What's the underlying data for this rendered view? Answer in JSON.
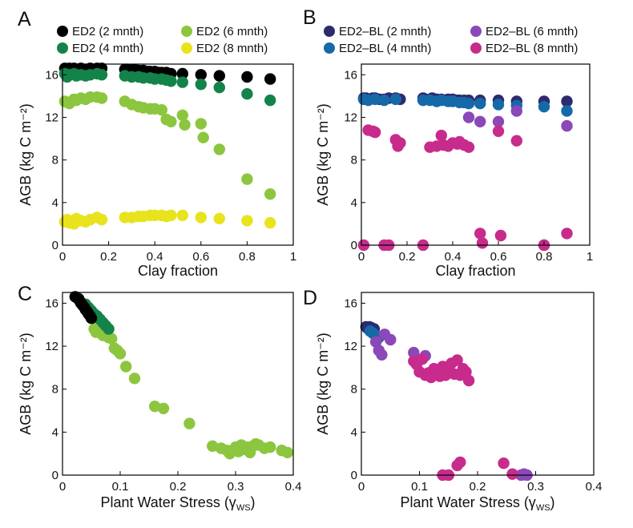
{
  "chart_data": [
    {
      "type": "scatter",
      "panel": "A",
      "xlabel": "Clay fraction",
      "ylabel": "AGB (kg C m⁻²)",
      "xlim": [
        0,
        1
      ],
      "ylim": [
        0,
        17
      ],
      "xticks": [
        "0",
        "0.2",
        "0.4",
        "0.6",
        "0.8",
        "1"
      ],
      "xtick_values": [
        0,
        0.2,
        0.4,
        0.6,
        0.8,
        1
      ],
      "yticks": [
        "0",
        "4",
        "8",
        "12",
        "16"
      ],
      "ytick_values": [
        0,
        4,
        8,
        12,
        16
      ],
      "grid": false,
      "legend": "top",
      "series": [
        {
          "name": "ED2 (2 mnth)",
          "color": "#000000",
          "x": [
            0.01,
            0.02,
            0.03,
            0.05,
            0.06,
            0.08,
            0.1,
            0.12,
            0.15,
            0.17,
            0.27,
            0.28,
            0.3,
            0.31,
            0.33,
            0.35,
            0.37,
            0.38,
            0.4,
            0.42,
            0.43,
            0.45,
            0.47,
            0.52,
            0.6,
            0.68,
            0.8,
            0.9
          ],
          "y": [
            16.6,
            16.5,
            16.6,
            16.6,
            16.5,
            16.6,
            16.5,
            16.6,
            16.6,
            16.6,
            16.5,
            16.5,
            16.4,
            16.5,
            16.4,
            16.4,
            16.3,
            16.3,
            16.3,
            16.2,
            16.2,
            16.2,
            16.1,
            16.1,
            16.0,
            15.9,
            15.8,
            15.6
          ]
        },
        {
          "name": "ED2 (4 mnth)",
          "color": "#13834a",
          "x": [
            0.01,
            0.02,
            0.03,
            0.05,
            0.06,
            0.08,
            0.1,
            0.12,
            0.15,
            0.17,
            0.27,
            0.3,
            0.33,
            0.35,
            0.38,
            0.4,
            0.43,
            0.45,
            0.47,
            0.52,
            0.6,
            0.68,
            0.8,
            0.9
          ],
          "y": [
            16.1,
            15.8,
            16.0,
            16.1,
            15.9,
            16.0,
            15.9,
            16.0,
            16.1,
            16.0,
            15.9,
            15.8,
            15.8,
            15.7,
            15.7,
            15.6,
            15.6,
            15.5,
            15.4,
            15.3,
            15.1,
            14.8,
            14.2,
            13.6
          ]
        },
        {
          "name": "ED2 (6 mnth)",
          "color": "#8cc63e",
          "x": [
            0.01,
            0.02,
            0.03,
            0.05,
            0.06,
            0.08,
            0.1,
            0.12,
            0.15,
            0.17,
            0.27,
            0.3,
            0.33,
            0.35,
            0.38,
            0.4,
            0.43,
            0.45,
            0.47,
            0.52,
            0.53,
            0.6,
            0.61,
            0.68,
            0.8,
            0.9
          ],
          "y": [
            13.5,
            13.4,
            13.3,
            13.7,
            13.6,
            13.8,
            13.7,
            13.9,
            13.9,
            13.8,
            13.5,
            13.2,
            13.0,
            12.9,
            12.8,
            12.8,
            12.7,
            11.8,
            11.6,
            12.2,
            11.3,
            11.4,
            10.1,
            9.0,
            6.2,
            4.8
          ]
        },
        {
          "name": "ED2 (8 mnth)",
          "color": "#e8e31c",
          "x": [
            0.01,
            0.02,
            0.03,
            0.05,
            0.06,
            0.08,
            0.1,
            0.12,
            0.15,
            0.17,
            0.27,
            0.3,
            0.33,
            0.35,
            0.38,
            0.4,
            0.43,
            0.45,
            0.47,
            0.52,
            0.6,
            0.68,
            0.8,
            0.9
          ],
          "y": [
            2.2,
            2.4,
            2.1,
            2.0,
            2.5,
            2.3,
            2.2,
            2.4,
            2.6,
            2.4,
            2.6,
            2.6,
            2.7,
            2.7,
            2.8,
            2.8,
            2.8,
            2.7,
            2.8,
            2.8,
            2.6,
            2.5,
            2.3,
            2.1
          ]
        }
      ]
    },
    {
      "type": "scatter",
      "panel": "B",
      "xlabel": "Clay fraction",
      "ylabel": "AGB (kg C m⁻²)",
      "xlim": [
        0,
        1
      ],
      "ylim": [
        0,
        17
      ],
      "xticks": [
        "0",
        "0.2",
        "0.4",
        "0.6",
        "0.8",
        "1"
      ],
      "xtick_values": [
        0,
        0.2,
        0.4,
        0.6,
        0.8,
        1
      ],
      "yticks": [
        "0",
        "4",
        "8",
        "12",
        "16"
      ],
      "ytick_values": [
        0,
        4,
        8,
        12,
        16
      ],
      "grid": false,
      "legend": "top",
      "series": [
        {
          "name": "ED2–BL (2 mnth)",
          "color": "#2d2b6e",
          "x": [
            0.01,
            0.02,
            0.03,
            0.05,
            0.06,
            0.08,
            0.1,
            0.12,
            0.15,
            0.17,
            0.27,
            0.28,
            0.3,
            0.31,
            0.33,
            0.35,
            0.37,
            0.38,
            0.4,
            0.42,
            0.43,
            0.45,
            0.47,
            0.52,
            0.6,
            0.68,
            0.8,
            0.9
          ],
          "y": [
            13.8,
            13.8,
            13.7,
            13.8,
            13.8,
            13.7,
            13.7,
            13.8,
            13.8,
            13.7,
            13.8,
            13.7,
            13.7,
            13.8,
            13.7,
            13.7,
            13.6,
            13.7,
            13.7,
            13.6,
            13.6,
            13.6,
            13.6,
            13.6,
            13.6,
            13.5,
            13.5,
            13.5
          ]
        },
        {
          "name": "ED2–BL (4 mnth)",
          "color": "#1669a8",
          "x": [
            0.01,
            0.03,
            0.06,
            0.1,
            0.15,
            0.27,
            0.3,
            0.33,
            0.35,
            0.38,
            0.4,
            0.43,
            0.45,
            0.47,
            0.52,
            0.6,
            0.68,
            0.8,
            0.9
          ],
          "y": [
            13.7,
            13.6,
            13.7,
            13.6,
            13.7,
            13.6,
            13.6,
            13.5,
            13.6,
            13.5,
            13.5,
            13.4,
            13.4,
            13.3,
            13.3,
            13.2,
            13.1,
            13.0,
            12.6
          ]
        },
        {
          "name": "ED2–BL (6 mnth)",
          "color": "#8a48b8",
          "x": [
            0.47,
            0.52,
            0.6,
            0.68,
            0.8,
            0.9
          ],
          "y": [
            12.0,
            11.6,
            11.6,
            12.6,
            0.0,
            11.2
          ]
        },
        {
          "name": "ED2–BL (8 mnth)",
          "color": "#c72b8c",
          "x": [
            0.01,
            0.03,
            0.05,
            0.06,
            0.1,
            0.12,
            0.15,
            0.16,
            0.17,
            0.27,
            0.3,
            0.33,
            0.35,
            0.36,
            0.38,
            0.4,
            0.42,
            0.43,
            0.45,
            0.47,
            0.52,
            0.53,
            0.6,
            0.61,
            0.68,
            0.8,
            0.9
          ],
          "y": [
            0.0,
            10.8,
            10.7,
            10.6,
            0.0,
            0.0,
            9.9,
            9.3,
            9.6,
            0.0,
            9.2,
            9.3,
            10.3,
            9.4,
            9.3,
            9.6,
            9.5,
            9.7,
            9.4,
            9.2,
            1.1,
            0.2,
            10.7,
            0.9,
            9.8,
            0.0,
            1.1
          ]
        }
      ]
    },
    {
      "type": "scatter",
      "panel": "C",
      "xlabel": "Plant Water Stress (γ",
      "xlabel_sub": "WS",
      "xlabel_end": ")",
      "ylabel": "AGB (kg C m⁻²)",
      "xlim": [
        0,
        0.4
      ],
      "ylim": [
        0,
        17
      ],
      "xticks": [
        "0",
        "0.1",
        "0.2",
        "0.3",
        "0.4"
      ],
      "xtick_values": [
        0,
        0.1,
        0.2,
        0.3,
        0.4
      ],
      "yticks": [
        "0",
        "4",
        "8",
        "12",
        "16"
      ],
      "ytick_values": [
        0,
        4,
        8,
        12,
        16
      ],
      "grid": false,
      "series": [
        {
          "name": "ED2 (6 mnth)",
          "color": "#8cc63e",
          "x": [
            0.055,
            0.058,
            0.06,
            0.062,
            0.065,
            0.068,
            0.07,
            0.072,
            0.075,
            0.078,
            0.08,
            0.085,
            0.09,
            0.095,
            0.1,
            0.11,
            0.125,
            0.16,
            0.175,
            0.22,
            0.26,
            0.275,
            0.285,
            0.29,
            0.3,
            0.305,
            0.31,
            0.315,
            0.32,
            0.325,
            0.33,
            0.335,
            0.34,
            0.35,
            0.36,
            0.38,
            0.39
          ],
          "y": [
            13.6,
            13.3,
            13.9,
            13.5,
            13.8,
            13.2,
            13.0,
            13.7,
            13.4,
            12.9,
            12.8,
            12.7,
            11.8,
            11.6,
            11.3,
            10.1,
            9.0,
            6.4,
            6.2,
            4.8,
            2.7,
            2.5,
            2.3,
            2.0,
            2.6,
            2.2,
            2.8,
            2.4,
            2.6,
            2.1,
            2.7,
            2.9,
            2.8,
            2.5,
            2.6,
            2.3,
            2.1
          ]
        },
        {
          "name": "ED2 (4 mnth)",
          "color": "#13834a",
          "x": [
            0.04,
            0.045,
            0.05,
            0.055,
            0.06,
            0.065,
            0.07,
            0.075,
            0.08
          ],
          "y": [
            15.9,
            15.6,
            15.3,
            15.0,
            14.8,
            14.5,
            14.2,
            13.9,
            13.6
          ]
        },
        {
          "name": "ED2 (2 mnth)",
          "color": "#000000",
          "x": [
            0.022,
            0.025,
            0.028,
            0.03,
            0.032,
            0.035,
            0.038,
            0.04,
            0.043,
            0.045,
            0.048,
            0.05
          ],
          "y": [
            16.6,
            16.5,
            16.4,
            16.2,
            16.0,
            15.8,
            15.6,
            15.4,
            15.2,
            15.0,
            14.8,
            14.6
          ]
        }
      ]
    },
    {
      "type": "scatter",
      "panel": "D",
      "xlabel": "Plant Water Stress (γ",
      "xlabel_sub": "WS",
      "xlabel_end": ")",
      "ylabel": "AGB (kg C m⁻²)",
      "xlim": [
        0,
        0.4
      ],
      "ylim": [
        0,
        17
      ],
      "xticks": [
        "0",
        "0.1",
        "0.2",
        "0.3",
        "0.4"
      ],
      "xtick_values": [
        0,
        0.1,
        0.2,
        0.3,
        0.4
      ],
      "yticks": [
        "0",
        "4",
        "8",
        "12",
        "16"
      ],
      "ytick_values": [
        0,
        4,
        8,
        12,
        16
      ],
      "grid": false,
      "series": [
        {
          "name": "ED2–BL (2 mnth)",
          "color": "#2d2b6e",
          "x": [
            0.008,
            0.01,
            0.012,
            0.014,
            0.016,
            0.018,
            0.02,
            0.022
          ],
          "y": [
            13.8,
            13.7,
            13.6,
            13.8,
            13.5,
            13.7,
            13.4,
            13.6
          ]
        },
        {
          "name": "ED2–BL (4 mnth)",
          "color": "#1669a8",
          "x": [
            0.015,
            0.02,
            0.025,
            0.03
          ],
          "y": [
            13.4,
            13.2,
            13.0,
            12.8
          ]
        },
        {
          "name": "ED2–BL (6 mnth)",
          "color": "#8a48b8",
          "x": [
            0.025,
            0.03,
            0.035,
            0.04,
            0.05,
            0.09,
            0.11,
            0.275,
            0.28,
            0.285
          ],
          "y": [
            12.4,
            11.6,
            11.2,
            13.1,
            12.6,
            11.4,
            11.1,
            0.0,
            0.1,
            0.0
          ]
        },
        {
          "name": "ED2–BL (8 mnth)",
          "color": "#c72b8c",
          "x": [
            0.09,
            0.095,
            0.1,
            0.105,
            0.11,
            0.115,
            0.12,
            0.125,
            0.13,
            0.135,
            0.14,
            0.145,
            0.15,
            0.155,
            0.16,
            0.165,
            0.17,
            0.175,
            0.18,
            0.185,
            0.14,
            0.15,
            0.165,
            0.17,
            0.245,
            0.26
          ],
          "y": [
            10.6,
            10.3,
            9.6,
            10.8,
            9.3,
            9.5,
            9.1,
            9.9,
            9.4,
            9.2,
            10.1,
            9.3,
            9.7,
            10.4,
            9.4,
            10.7,
            9.3,
            9.9,
            9.6,
            8.8,
            0.0,
            0.0,
            0.9,
            1.2,
            1.1,
            0.1
          ]
        }
      ]
    }
  ],
  "panel_letters": [
    "A",
    "B",
    "C",
    "D"
  ],
  "legend_marker_order": {
    "A": [
      "ED2 (2 mnth)",
      "ED2 (6 mnth)",
      "ED2 (4 mnth)",
      "ED2 (8 mnth)"
    ],
    "B": [
      "ED2–BL (2 mnth)",
      "ED2–BL (6 mnth)",
      "ED2–BL (4 mnth)",
      "ED2–BL (8 mnth)"
    ]
  }
}
